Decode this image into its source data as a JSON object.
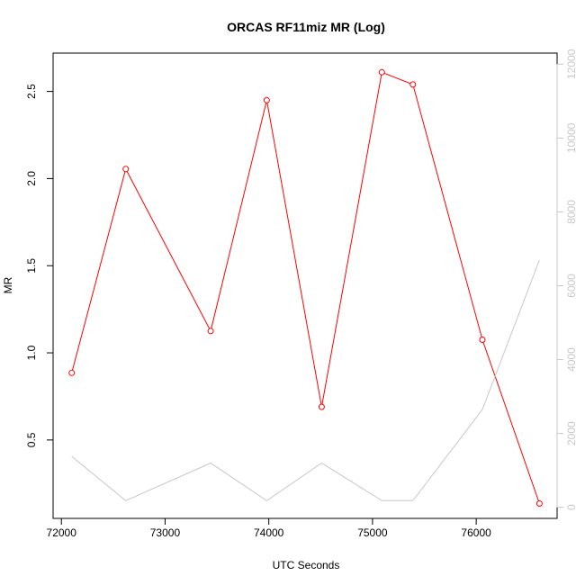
{
  "chart_data": {
    "type": "line",
    "title": "ORCAS RF11miz MR (Log)",
    "xlabel": "UTC Seconds",
    "ylabel": "MR",
    "xlim": [
      71920,
      76780
    ],
    "ylim_left": [
      0.05,
      2.72
    ],
    "ylim_right": [
      -300,
      12300
    ],
    "x_ticks": [
      72000,
      73000,
      74000,
      75000,
      76000
    ],
    "y_ticks_left": [
      0.5,
      1.0,
      1.5,
      2.0,
      2.5
    ],
    "y_ticks_left_labels": [
      "0.5",
      "1.0",
      "1.5",
      "2.0",
      "2.5"
    ],
    "y_ticks_right": [
      0,
      2000,
      4000,
      6000,
      8000,
      10000,
      12000
    ],
    "grid": false,
    "series": [
      {
        "axis": "left",
        "color": "#ff0000",
        "marker": "circle",
        "x": [
          72100,
          72620,
          73440,
          73980,
          74510,
          75090,
          75390,
          76060,
          76610
        ],
        "y": [
          0.885,
          2.055,
          1.125,
          2.45,
          0.69,
          2.61,
          2.54,
          1.075,
          0.135
        ]
      },
      {
        "axis": "right",
        "color": "#c8c8c8",
        "marker": "none",
        "x": [
          72100,
          72620,
          73440,
          73980,
          74510,
          75090,
          75390,
          76060,
          76610
        ],
        "y": [
          1380,
          180,
          1200,
          180,
          1200,
          180,
          180,
          2650,
          6700
        ]
      }
    ]
  }
}
